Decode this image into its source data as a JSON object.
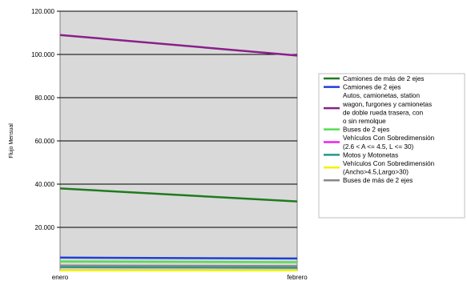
{
  "chart_data": {
    "type": "line",
    "title": "",
    "xlabel": "",
    "ylabel": "Flujo Mensual",
    "x": [
      "enero",
      "febrero"
    ],
    "ylim": [
      0,
      120000
    ],
    "yticks": [
      20000,
      40000,
      60000,
      80000,
      100000,
      120000
    ],
    "ytick_labels": [
      "20.000",
      "40.000",
      "60.000",
      "80.000",
      "100.000",
      "120.000"
    ],
    "grid": true,
    "legend_position": "right",
    "plot_background": "#d9d9d9",
    "series": [
      {
        "name": "Camiones de más de 2 ejes",
        "color": "#1f7a1f",
        "values": [
          38000,
          32000
        ]
      },
      {
        "name": "Camiones de 2 ejes",
        "color": "#1f3fd6",
        "values": [
          6000,
          5600
        ]
      },
      {
        "name": "Autos, camionetas, station wagon, furgones y camionetas de doble rueda trasera, con o sin remolque",
        "color": "#8a1f8a",
        "values": [
          109000,
          99500
        ]
      },
      {
        "name": "Buses de 2 ejes",
        "color": "#55dd55",
        "values": [
          4200,
          3900
        ]
      },
      {
        "name": "Vehículos Con Sobredimensión (2.6 < A <= 4.5, L <= 30)",
        "color": "#ee22ee",
        "values": [
          150,
          150
        ]
      },
      {
        "name": "Motos y Motonetas",
        "color": "#1f9a8a",
        "values": [
          1600,
          1300
        ]
      },
      {
        "name": "Vehículos Con Sobredimensión (Ancho>4.5,Largo>30)",
        "color": "#f2f200",
        "values": [
          80,
          80
        ]
      },
      {
        "name": "Buses de más de 2 ejes",
        "color": "#888888",
        "values": [
          2300,
          2100
        ]
      }
    ],
    "legend_lines": [
      [
        "Camiones de más de 2 ejes"
      ],
      [
        "Camiones de 2 ejes"
      ],
      [
        "Autos, camionetas, station",
        "wagon, furgones y camionetas",
        "de doble rueda trasera, con",
        "o sin remolque"
      ],
      [
        "Buses de 2 ejes"
      ],
      [
        "Vehículos Con Sobredimensión",
        "(2.6 < A <= 4.5, L <= 30)"
      ],
      [
        "Motos y Motonetas"
      ],
      [
        "Vehículos Con Sobredimensión",
        "(Ancho>4.5,Largo>30)"
      ],
      [
        "Buses de más de 2 ejes"
      ]
    ]
  }
}
